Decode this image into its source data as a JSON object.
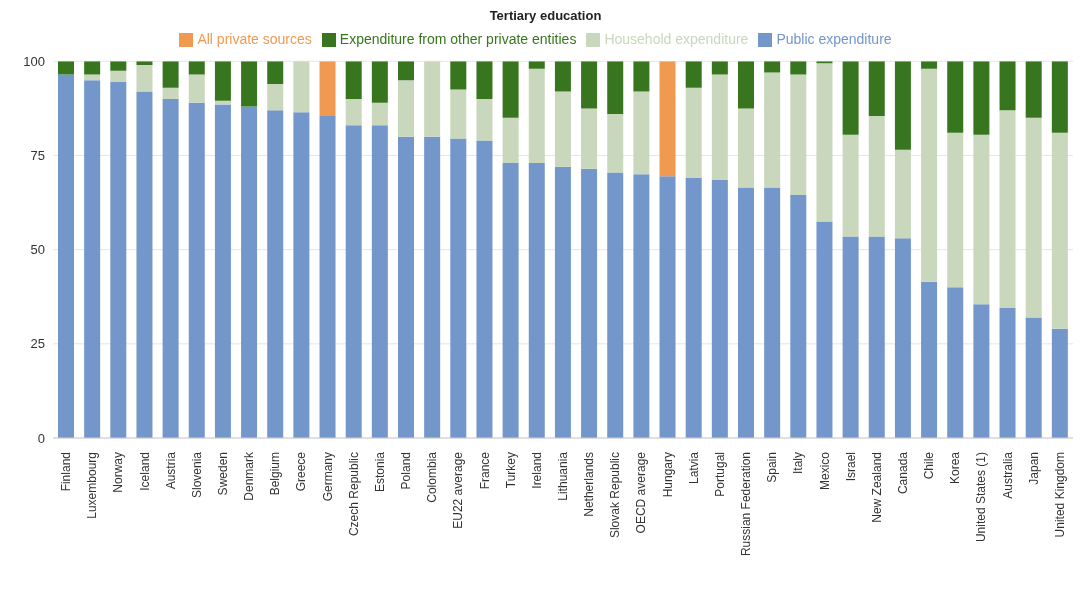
{
  "chart_data": {
    "type": "bar",
    "title": "Tertiary education",
    "stacked": true,
    "legend": "top",
    "grid": "y",
    "ylim": [
      0,
      100
    ],
    "yticks": [
      0,
      25,
      50,
      75,
      100
    ],
    "categories": [
      "Finland",
      "Luxembourg",
      "Norway",
      "Iceland",
      "Austria",
      "Slovenia",
      "Sweden",
      "Denmark",
      "Belgium",
      "Greece",
      "Germany",
      "Czech Republic",
      "Estonia",
      "Poland",
      "Colombia",
      "EU22 average",
      "France",
      "Turkey",
      "Ireland",
      "Lithuania",
      "Netherlands",
      "Slovak Republic",
      "OECD average",
      "Hungary",
      "Latvia",
      "Portugal",
      "Russian Federation",
      "Spain",
      "Italy",
      "Mexico",
      "Israel",
      "New Zealand",
      "Canada",
      "Chile",
      "Korea",
      "United States (1)",
      "Australia",
      "Japan",
      "United Kingdom"
    ],
    "series": [
      {
        "name": "Public expenditure",
        "color": "#7396cb",
        "values": [
          96.5,
          95,
          94.5,
          92,
          90,
          89,
          88.5,
          88,
          87,
          86.5,
          85.5,
          83,
          83,
          80,
          80,
          79.5,
          79,
          73,
          73,
          72,
          71.5,
          70.5,
          70,
          69.5,
          69,
          68.5,
          66.5,
          66.5,
          64.5,
          57.5,
          53.5,
          53.5,
          53,
          41.5,
          40,
          35.5,
          34.5,
          32,
          29
        ]
      },
      {
        "name": "Household expenditure",
        "color": "#c9d7bc",
        "values": [
          0,
          1.5,
          3,
          7,
          3,
          7.5,
          1,
          0,
          7,
          13.5,
          null,
          7,
          6,
          15,
          20,
          13,
          11,
          12,
          25,
          20,
          16,
          15.5,
          22,
          null,
          24,
          28,
          21,
          30.5,
          32,
          42,
          27,
          32,
          23.5,
          56.5,
          41,
          45,
          52.5,
          53,
          52
        ]
      },
      {
        "name": "Expenditure from other private entities",
        "color": "#37761e",
        "values": [
          3.5,
          3.5,
          2.5,
          1,
          7,
          3.5,
          10.5,
          12,
          6,
          0,
          null,
          10,
          11,
          5,
          0,
          7.5,
          10,
          15,
          2,
          8,
          12.5,
          14,
          8,
          null,
          7,
          3.5,
          12.5,
          3,
          3.5,
          0.5,
          19.5,
          14.5,
          23.5,
          2,
          19,
          19.5,
          13,
          15,
          19
        ]
      },
      {
        "name": "All private sources",
        "color": "#ef9a50",
        "values": [
          null,
          null,
          null,
          null,
          null,
          null,
          null,
          null,
          null,
          null,
          14.5,
          null,
          null,
          null,
          null,
          null,
          null,
          null,
          null,
          null,
          null,
          null,
          null,
          30.5,
          null,
          null,
          null,
          null,
          null,
          null,
          null,
          null,
          null,
          null,
          null,
          null,
          null,
          null,
          null
        ]
      }
    ]
  }
}
